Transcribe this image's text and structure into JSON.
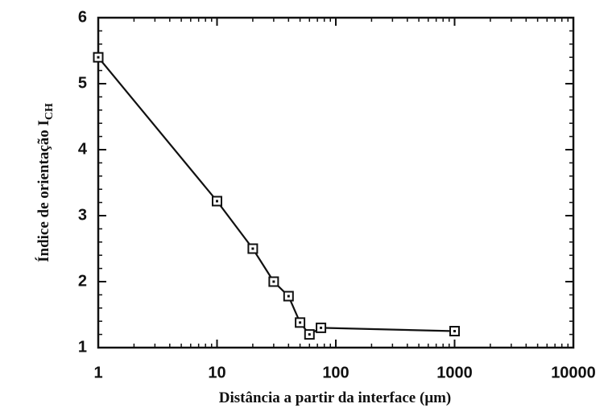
{
  "chart_data": {
    "type": "line",
    "x_log": true,
    "minor_ticks": true,
    "color": "#111111",
    "y_label": "Índice de orientação  I",
    "y_label_subscript": "CH",
    "x_label": "Distância a partir da interface  (μm)",
    "x": [
      1,
      10,
      20,
      30,
      40,
      50,
      60,
      75,
      1000
    ],
    "values": [
      5.4,
      3.22,
      2.5,
      2.0,
      1.78,
      1.38,
      1.2,
      1.3,
      1.25
    ],
    "xlim": [
      1,
      10000
    ],
    "xticks": [
      1,
      10,
      100,
      1000,
      10000
    ],
    "ylim": [
      1,
      6
    ],
    "yticks": [
      1,
      2,
      3,
      4,
      5,
      6
    ]
  }
}
